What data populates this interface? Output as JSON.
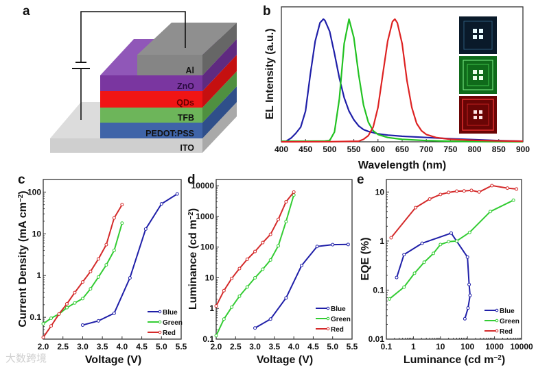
{
  "figure": {
    "panel_labels": [
      "a",
      "b",
      "c",
      "d",
      "e"
    ],
    "device_layers": [
      "Al",
      "ZnO",
      "QDs",
      "TFB",
      "PEDOT:PSS",
      "ITO"
    ],
    "layer_colors": {
      "Al": "#8a8a8a",
      "ZnO": "#7a3aa0",
      "QDs": "#ee1a1a",
      "TFB": "#6db55a",
      "PEDOT:PSS": "#3f64a8",
      "ITO": "#d2d2d2"
    },
    "watermark": "大数跨境"
  },
  "chart_data": [
    {
      "id": "b",
      "type": "line",
      "xlabel": "Wavelength (nm)",
      "ylabel": "EL Intensity (a.u.)",
      "xlim": [
        400,
        900
      ],
      "ylim": [
        0,
        1.1
      ],
      "yscale": "linear",
      "xticks": [
        400,
        450,
        500,
        550,
        600,
        650,
        700,
        750,
        800,
        850,
        900
      ],
      "insets": [
        "Blue device photo",
        "Green device photo",
        "Red device photo"
      ],
      "series": [
        {
          "name": "Blue",
          "color": "#1f1fa8",
          "x": [
            400,
            410,
            420,
            430,
            440,
            450,
            460,
            470,
            480,
            487,
            490,
            500,
            510,
            520,
            530,
            540,
            550,
            560,
            570,
            580,
            590,
            600,
            620,
            650,
            700,
            750,
            800,
            850,
            900
          ],
          "y": [
            0,
            0.005,
            0.03,
            0.07,
            0.12,
            0.25,
            0.55,
            0.82,
            0.97,
            1.0,
            0.99,
            0.9,
            0.72,
            0.52,
            0.36,
            0.25,
            0.18,
            0.13,
            0.1,
            0.085,
            0.075,
            0.065,
            0.055,
            0.045,
            0.035,
            0.025,
            0.018,
            0.01,
            0.005
          ]
        },
        {
          "name": "Green",
          "color": "#22c222",
          "x": [
            400,
            450,
            490,
            500,
            510,
            520,
            530,
            540,
            550,
            560,
            570,
            580,
            590,
            600,
            620,
            650,
            700,
            750,
            800,
            900
          ],
          "y": [
            0.005,
            0.005,
            0.006,
            0.01,
            0.08,
            0.35,
            0.8,
            1.0,
            0.85,
            0.55,
            0.3,
            0.16,
            0.09,
            0.06,
            0.035,
            0.02,
            0.01,
            0.005,
            0.002,
            0
          ]
        },
        {
          "name": "Red",
          "color": "#dd2222",
          "x": [
            400,
            500,
            560,
            570,
            580,
            590,
            600,
            610,
            620,
            630,
            635,
            640,
            650,
            660,
            670,
            680,
            690,
            700,
            720,
            750,
            800,
            850,
            900
          ],
          "y": [
            0,
            0.001,
            0.005,
            0.02,
            0.05,
            0.12,
            0.28,
            0.55,
            0.82,
            0.98,
            1.0,
            0.97,
            0.8,
            0.5,
            0.28,
            0.15,
            0.09,
            0.06,
            0.035,
            0.02,
            0.012,
            0.008,
            0.005
          ]
        }
      ]
    },
    {
      "id": "c",
      "type": "line",
      "xlabel": "Voltage (V)",
      "ylabel": "Current Density (mA cm",
      "ylabel_sup": "-2",
      "ylabel_end": ")",
      "xlim": [
        2.0,
        5.5
      ],
      "ylim": [
        0.03,
        200
      ],
      "yscale": "log",
      "xticks": [
        "2.0",
        "2.5",
        "3.0",
        "3.5",
        "4.0",
        "4.5",
        "5.0",
        "5.5"
      ],
      "yticks": [
        "0.1",
        "1",
        "10",
        "100"
      ],
      "legend": "bottom-right",
      "series": [
        {
          "name": "Blue",
          "color": "#1f1fa8",
          "x": [
            3.0,
            3.4,
            3.8,
            4.2,
            4.6,
            5.0,
            5.4
          ],
          "y": [
            0.065,
            0.082,
            0.125,
            0.88,
            13,
            52,
            90
          ]
        },
        {
          "name": "Green",
          "color": "#33cc33",
          "x": [
            2.0,
            2.2,
            2.4,
            2.6,
            2.8,
            3.0,
            3.2,
            3.4,
            3.6,
            3.8,
            4.0
          ],
          "y": [
            0.07,
            0.095,
            0.12,
            0.17,
            0.22,
            0.28,
            0.48,
            0.92,
            1.8,
            4,
            18
          ]
        },
        {
          "name": "Red",
          "color": "#d42a2a",
          "x": [
            2.0,
            2.2,
            2.4,
            2.6,
            2.8,
            3.0,
            3.2,
            3.4,
            3.6,
            3.8,
            4.0
          ],
          "y": [
            0.033,
            0.062,
            0.12,
            0.21,
            0.39,
            0.7,
            1.25,
            2.5,
            5.5,
            24,
            50
          ]
        }
      ]
    },
    {
      "id": "d",
      "type": "line",
      "xlabel": "Voltage (V)",
      "ylabel": "Luminance (cd m",
      "ylabel_sup": "-2",
      "ylabel_end": ")",
      "xlim": [
        2.0,
        5.5
      ],
      "ylim": [
        0.1,
        16000
      ],
      "yscale": "log",
      "xticks": [
        "2.0",
        "2.5",
        "3.0",
        "3.5",
        "4.0",
        "4.5",
        "5.0",
        "5.5"
      ],
      "yticks": [
        "0.1",
        "1",
        "10",
        "100",
        "1000",
        "10000"
      ],
      "legend": "bottom-right",
      "series": [
        {
          "name": "Blue",
          "color": "#1f1fa8",
          "x": [
            3.0,
            3.4,
            3.8,
            4.2,
            4.6,
            5.0,
            5.4
          ],
          "y": [
            0.23,
            0.45,
            2.2,
            25,
            105,
            120,
            122
          ]
        },
        {
          "name": "Green",
          "color": "#33cc33",
          "x": [
            2.0,
            2.2,
            2.4,
            2.6,
            2.8,
            3.0,
            3.2,
            3.4,
            3.6,
            3.8,
            4.0
          ],
          "y": [
            0.13,
            0.45,
            1.1,
            2.5,
            5,
            10,
            19,
            38,
            110,
            680,
            5000
          ]
        },
        {
          "name": "Red",
          "color": "#d42a2a",
          "x": [
            2.0,
            2.2,
            2.4,
            2.6,
            2.8,
            3.0,
            3.2,
            3.4,
            3.6,
            3.8,
            4.0
          ],
          "y": [
            1.2,
            3.8,
            9.5,
            20,
            40,
            72,
            140,
            260,
            800,
            3000,
            6200
          ]
        }
      ]
    },
    {
      "id": "e",
      "type": "line",
      "xlabel": "Luminance (cd m",
      "xlabel_sup": "-2",
      "xlabel_end": ")",
      "ylabel": "EQE (%)",
      "xlim": [
        0.1,
        10000
      ],
      "ylim": [
        0.01,
        18
      ],
      "xscale": "log",
      "yscale": "log",
      "xticks": [
        "0.1",
        "1",
        "10",
        "100",
        "1000",
        "10000"
      ],
      "yticks": [
        "0.01",
        "0.1",
        "1",
        "10"
      ],
      "legend": "bottom-right",
      "series": [
        {
          "name": "Blue",
          "color": "#1f1fa8",
          "x": [
            0.24,
            0.45,
            2.1,
            25,
            100,
            115,
            125,
            105,
            80
          ],
          "y": [
            0.18,
            0.53,
            0.9,
            1.45,
            0.47,
            0.13,
            0.078,
            0.043,
            0.026
          ]
        },
        {
          "name": "Green",
          "color": "#33cc33",
          "x": [
            0.13,
            0.45,
            1.1,
            2.5,
            5.5,
            10,
            20,
            40,
            120,
            700,
            5000
          ],
          "y": [
            0.066,
            0.115,
            0.22,
            0.37,
            0.56,
            0.85,
            0.97,
            1.0,
            1.5,
            4,
            6.8
          ]
        },
        {
          "name": "Red",
          "color": "#d42a2a",
          "x": [
            0.15,
            1.2,
            4,
            10,
            20,
            40,
            75,
            140,
            270,
            800,
            3000,
            6500
          ],
          "y": [
            1.17,
            4.8,
            7.2,
            8.9,
            9.8,
            10.4,
            10.5,
            10.8,
            10,
            13.5,
            12,
            11.5
          ]
        }
      ]
    }
  ]
}
